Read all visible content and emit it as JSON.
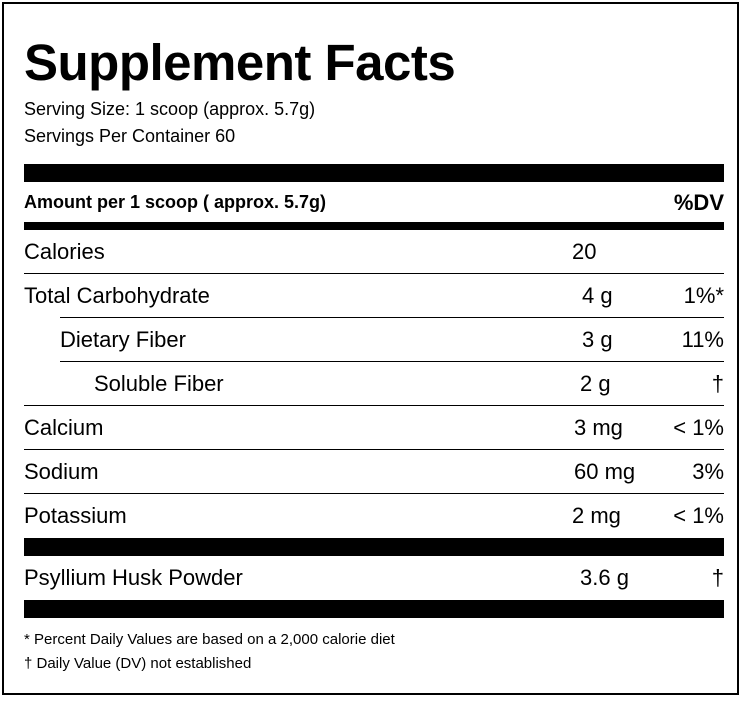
{
  "title": "Supplement Facts",
  "serving_size": "Serving Size: 1 scoop (approx. 5.7g)",
  "servings_per_container": "Servings Per Container 60",
  "amount_header": "Amount per 1 scoop ( approx. 5.7g)",
  "dv_header": "%DV",
  "rows": [
    {
      "name": "Calories",
      "amount": "20",
      "dv": ""
    },
    {
      "name": "Total Carbohydrate",
      "amount": "4 g",
      "dv": "1%*"
    },
    {
      "name": "Dietary Fiber",
      "amount": "3 g",
      "dv": "11%"
    },
    {
      "name": "Soluble Fiber",
      "amount": "2 g",
      "dv": "†"
    },
    {
      "name": "Calcium",
      "amount": "3 mg",
      "dv": "< 1%"
    },
    {
      "name": "Sodium",
      "amount": "60 mg",
      "dv": "3%"
    },
    {
      "name": "Potassium",
      "amount": "2 mg",
      "dv": "< 1%"
    }
  ],
  "ingredient": {
    "name": "Psyllium Husk Powder",
    "amount": "3.6 g",
    "dv": "†"
  },
  "footnotes": [
    "* Percent Daily Values are based on a 2,000 calorie diet",
    "† Daily Value (DV) not established"
  ]
}
